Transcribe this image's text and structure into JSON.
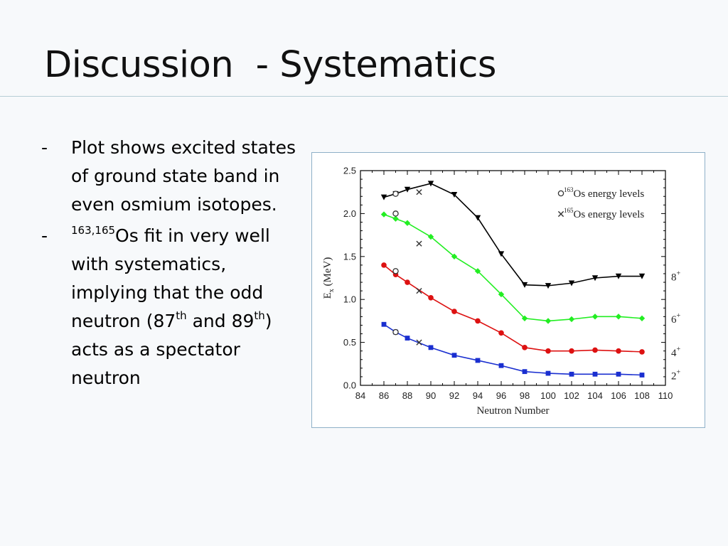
{
  "slide": {
    "title": "Discussion  - Systematics",
    "bullets": [
      {
        "dash": "-",
        "text": "Plot shows excited states of ground state band in even osmium isotopes."
      },
      {
        "dash": "-",
        "sup1": "163,165",
        "part1": "Os fit in very well with systematics, implying that the odd neutron (87",
        "sup2": "th",
        "part2": " and 89",
        "sup3": "th",
        "part3": ") acts as a spectator neutron"
      }
    ]
  },
  "chart_data": {
    "type": "line",
    "title": "",
    "xlabel": "Neutron Number",
    "ylabel": "E_x (MeV)",
    "ylabel_main": "E",
    "ylabel_sub": "x",
    "ylabel_rest": " (MeV)",
    "xlim": [
      84,
      110
    ],
    "ylim": [
      0,
      2.5
    ],
    "xticks": [
      84,
      86,
      88,
      90,
      92,
      94,
      96,
      98,
      100,
      102,
      104,
      106,
      108,
      110
    ],
    "yticks": [
      "0.0",
      "0.5",
      "1.0",
      "1.5",
      "2.0",
      "2.5"
    ],
    "grid": false,
    "legend_position": "top-right",
    "legend": [
      {
        "marker": "circle",
        "sup": "163",
        "label": "Os energy levels"
      },
      {
        "marker": "cross",
        "sup": "165",
        "label": "Os energy levels"
      }
    ],
    "x": [
      86,
      87,
      88,
      90,
      92,
      94,
      96,
      98,
      100,
      102,
      104,
      106,
      108
    ],
    "series": [
      {
        "name": "8+",
        "spin": "8",
        "parity": "+",
        "color": "#000000",
        "marker": "triangle-down",
        "values": [
          2.19,
          2.23,
          2.28,
          2.35,
          2.22,
          1.95,
          1.53,
          1.17,
          1.16,
          1.19,
          1.25,
          1.27,
          1.27
        ]
      },
      {
        "name": "6+",
        "spin": "6",
        "parity": "+",
        "color": "#22ee22",
        "marker": "diamond",
        "values": [
          1.99,
          1.94,
          1.89,
          1.73,
          1.5,
          1.33,
          1.06,
          0.78,
          0.75,
          0.77,
          0.8,
          0.8,
          0.78
        ]
      },
      {
        "name": "4+",
        "spin": "4",
        "parity": "+",
        "color": "#dd1111",
        "marker": "circle-filled",
        "values": [
          1.4,
          1.29,
          1.2,
          1.02,
          0.86,
          0.75,
          0.61,
          0.44,
          0.4,
          0.4,
          0.41,
          0.4,
          0.39
        ]
      },
      {
        "name": "2+",
        "spin": "2",
        "parity": "+",
        "color": "#1a2fd0",
        "marker": "square",
        "values": [
          0.71,
          0.62,
          0.55,
          0.44,
          0.35,
          0.29,
          0.23,
          0.16,
          0.14,
          0.13,
          0.13,
          0.13,
          0.12
        ]
      }
    ],
    "os163_points": {
      "x": [
        87,
        87,
        87,
        87
      ],
      "values": [
        2.23,
        2.0,
        1.33,
        0.62
      ]
    },
    "os165_points": {
      "x": [
        89,
        89,
        89,
        89
      ],
      "values": [
        2.25,
        1.65,
        1.1,
        0.5
      ]
    },
    "colors": {
      "axis": "#000000",
      "figure_border": "#8fb0c8",
      "title_rule": "#b7cdd6",
      "background": "#f7f9fb"
    }
  }
}
